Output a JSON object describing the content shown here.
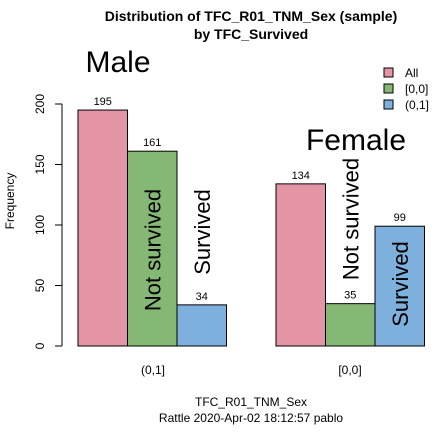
{
  "chart_data": {
    "type": "bar",
    "title": "Distribution of TFC_R01_TNM_Sex (sample)",
    "subtitle": "by TFC_Survived",
    "xlabel": "TFC_R01_TNM_Sex",
    "ylabel": "Frequency",
    "footer": "Rattle 2020-Apr-02 18:12:57 pablo",
    "ylim": [
      0,
      200
    ],
    "yticks": [
      0,
      50,
      100,
      150,
      200
    ],
    "categories": [
      "(0,1]",
      "[0,0]"
    ],
    "series": [
      {
        "name": "All",
        "color": "#E495A5",
        "values": [
          195,
          134
        ]
      },
      {
        "name": "[0,0]",
        "color": "#86B875",
        "values": [
          161,
          35
        ]
      },
      {
        "name": "(0,1]",
        "color": "#7DB0DD",
        "values": [
          34,
          99
        ]
      }
    ],
    "annotations": {
      "group_labels": [
        "Male",
        "Female"
      ],
      "bar_labels": [
        [
          "",
          "Not survived",
          "Survived"
        ],
        [
          "",
          "Not survived",
          "Survived"
        ]
      ]
    },
    "legend_position": "top-right"
  }
}
